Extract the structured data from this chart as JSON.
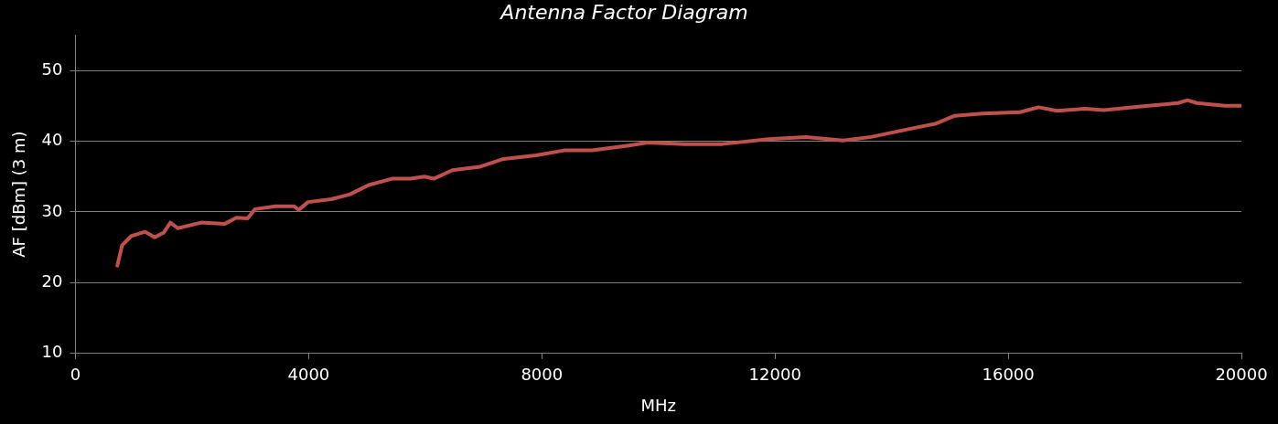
{
  "chart_data": {
    "type": "line",
    "title": "Antenna Factor Diagram",
    "xlabel": "MHz",
    "ylabel": "AF [dBm] (3 m)",
    "x": [
      718,
      800,
      958,
      1117,
      1197,
      1357,
      1516,
      1628,
      1756,
      2155,
      2554,
      2760,
      2953,
      3081,
      3432,
      3751,
      3830,
      3990,
      4390,
      4709,
      5028,
      5427,
      5746,
      5986,
      6146,
      6465,
      6943,
      7342,
      7901,
      8380,
      8859,
      9497,
      9816,
      10455,
      11093,
      11891,
      12530,
      13168,
      13647,
      14286,
      14764,
      15084,
      15562,
      16201,
      16520,
      16840,
      17319,
      17638,
      18276,
      18915,
      19075,
      19234,
      19713,
      20000
    ],
    "series": [
      {
        "color": "#c0504d",
        "values": [
          22.4,
          25.3,
          26.6,
          27.0,
          27.2,
          26.4,
          27.1,
          28.5,
          27.7,
          28.5,
          28.3,
          29.2,
          29.1,
          30.4,
          30.8,
          30.8,
          30.3,
          31.4,
          31.8,
          32.5,
          33.8,
          34.7,
          34.7,
          35.0,
          34.7,
          35.9,
          36.4,
          37.5,
          38.0,
          38.7,
          38.7,
          39.4,
          39.8,
          39.6,
          39.6,
          40.3,
          40.6,
          40.1,
          40.6,
          41.7,
          42.5,
          43.6,
          43.9,
          44.1,
          44.8,
          44.3,
          44.6,
          44.4,
          44.9,
          45.4,
          45.8,
          45.4,
          45.0,
          45.0
        ]
      }
    ],
    "xlim": [
      0,
      20000
    ],
    "xticks": [
      0,
      4000,
      8000,
      12000,
      16000,
      20000
    ],
    "ylim": [
      10,
      55
    ],
    "yticks": [
      10,
      20,
      30,
      40,
      50
    ],
    "grid": "y",
    "legend": false,
    "marker": "none",
    "line_style": "solid"
  }
}
